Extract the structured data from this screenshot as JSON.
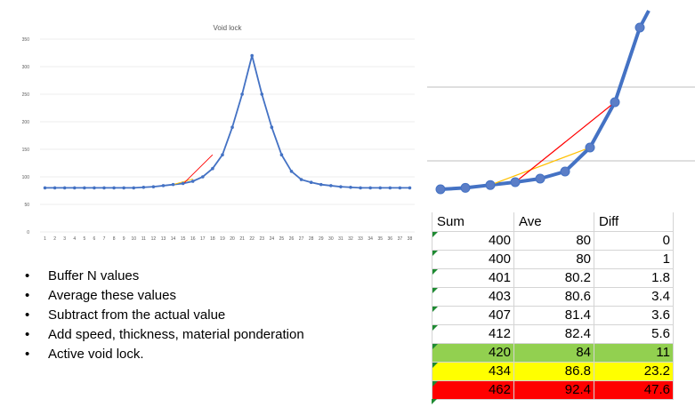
{
  "chart_data": [
    {
      "type": "line",
      "title": "Void lock",
      "xlabel": "",
      "ylabel": "",
      "x": [
        1,
        2,
        3,
        4,
        5,
        6,
        7,
        8,
        9,
        10,
        11,
        12,
        13,
        14,
        15,
        16,
        17,
        18,
        19,
        20,
        21,
        22,
        23,
        24,
        25,
        26,
        27,
        28,
        29,
        30,
        31,
        32,
        33,
        34,
        35,
        36,
        37,
        38
      ],
      "ylim": [
        0,
        350
      ],
      "yticks": [
        0,
        50,
        100,
        150,
        200,
        250,
        300,
        350
      ],
      "grid": true,
      "series": [
        {
          "values": [
            80,
            80,
            80,
            80,
            80,
            80,
            80,
            80,
            80,
            80,
            81,
            82,
            84,
            86,
            88,
            92,
            100,
            115,
            140,
            190,
            250,
            320,
            250,
            190,
            140,
            110,
            95,
            90,
            86,
            84,
            82,
            81,
            80,
            80,
            80,
            80,
            80,
            80
          ],
          "color": "#4472c4",
          "markers": true
        }
      ],
      "overlay_lines": [
        {
          "color": "#ffc000",
          "from": [
            14,
            86
          ],
          "to": [
            16,
            96
          ]
        },
        {
          "color": "#ff0000",
          "from": [
            15,
            87
          ],
          "to": [
            18,
            140
          ]
        }
      ]
    },
    {
      "type": "line",
      "title": "",
      "description_free": true,
      "x": [
        1,
        2,
        3,
        4,
        5,
        6,
        7,
        8,
        9
      ],
      "series": [
        {
          "values": [
            80,
            80.4,
            81.2,
            82,
            83.6,
            86,
            91,
            103,
            125
          ],
          "color": "#4472c4",
          "markers": true
        }
      ],
      "overlay_lines": [
        {
          "color": "#ffc000",
          "from": [
            3,
            81.2
          ],
          "to": [
            7,
            91
          ]
        },
        {
          "color": "#ff0000",
          "from": [
            4,
            82
          ],
          "to": [
            8,
            103
          ]
        }
      ],
      "grid": true
    }
  ],
  "bullets": [
    "Buffer N values",
    "Average these values",
    "Subtract from the actual value",
    "Add speed, thickness, material  ponderation",
    "Active void lock."
  ],
  "table": {
    "headers": [
      "Sum",
      "Ave",
      "Diff"
    ],
    "rows": [
      {
        "sum": "400",
        "ave": "80",
        "diff": "0",
        "highlight": ""
      },
      {
        "sum": "400",
        "ave": "80",
        "diff": "1",
        "highlight": ""
      },
      {
        "sum": "401",
        "ave": "80.2",
        "diff": "1.8",
        "highlight": ""
      },
      {
        "sum": "403",
        "ave": "80.6",
        "diff": "3.4",
        "highlight": ""
      },
      {
        "sum": "407",
        "ave": "81.4",
        "diff": "3.6",
        "highlight": ""
      },
      {
        "sum": "412",
        "ave": "82.4",
        "diff": "5.6",
        "highlight": ""
      },
      {
        "sum": "420",
        "ave": "84",
        "diff": "11",
        "highlight": "green"
      },
      {
        "sum": "434",
        "ave": "86.8",
        "diff": "23.2",
        "highlight": "yellow"
      },
      {
        "sum": "462",
        "ave": "92.4",
        "diff": "47.6",
        "highlight": "red"
      }
    ]
  },
  "colors": {
    "line": "#4472c4",
    "grid": "#d9d9d9",
    "highlight_green": "#92d050",
    "highlight_yellow": "#ffff00",
    "highlight_red": "#ff0000",
    "overlay_yellow": "#ffc000",
    "overlay_red": "#ff0000"
  }
}
